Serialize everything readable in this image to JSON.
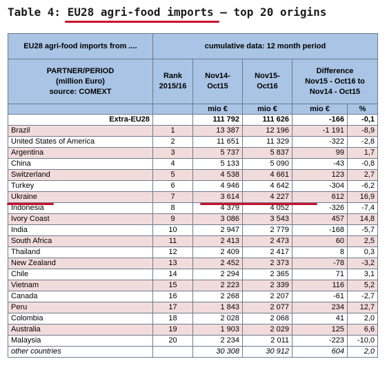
{
  "title": {
    "prefix": "Table 4: ",
    "highlight": "EU28 agri-food imports",
    "suffix": " – top 20 origins"
  },
  "header": {
    "top_left": "EU28 agri-food imports from ....",
    "top_right": "cumulative data: 12 month period",
    "partner_lines": [
      "PARTNER/PERIOD",
      "(million Euro)",
      "source: COMEXT"
    ],
    "rank_lines": [
      "Rank",
      "2015/16"
    ],
    "period1_lines": [
      "Nov14-",
      "Oct15"
    ],
    "period2_lines": [
      "Nov15-",
      "Oct16"
    ],
    "diff_lines": [
      "Difference",
      "Nov15 - Oct16 to",
      "Nov14 - Oct15"
    ],
    "units": [
      "mio €",
      "mio €",
      "mio €",
      "%"
    ]
  },
  "extra_eu": {
    "name": "Extra-EU28",
    "v1": "111 792",
    "v2": "111 626",
    "diff": "-166",
    "pct": "-0,1"
  },
  "rows": [
    {
      "name": "Brazil",
      "rank": "1",
      "v1": "13 387",
      "v2": "12 196",
      "diff": "-1 191",
      "pct": "-8,9"
    },
    {
      "name": "United States of America",
      "rank": "2",
      "v1": "11 651",
      "v2": "11 329",
      "diff": "-322",
      "pct": "-2,8"
    },
    {
      "name": "Argentina",
      "rank": "3",
      "v1": "5 737",
      "v2": "5 837",
      "diff": "99",
      "pct": "1,7"
    },
    {
      "name": "China",
      "rank": "4",
      "v1": "5 133",
      "v2": "5 090",
      "diff": "-43",
      "pct": "-0,8"
    },
    {
      "name": "Switzerland",
      "rank": "5",
      "v1": "4 538",
      "v2": "4 661",
      "diff": "123",
      "pct": "2,7"
    },
    {
      "name": "Turkey",
      "rank": "6",
      "v1": "4 946",
      "v2": "4 642",
      "diff": "-304",
      "pct": "-6,2"
    },
    {
      "name": "Ukraine",
      "rank": "7",
      "v1": "3 614",
      "v2": "4 227",
      "diff": "612",
      "pct": "16,9"
    },
    {
      "name": "Indonesia",
      "rank": "8",
      "v1": "4 379",
      "v2": "4 052",
      "diff": "-326",
      "pct": "-7,4"
    },
    {
      "name": "Ivory Coast",
      "rank": "9",
      "v1": "3 086",
      "v2": "3 543",
      "diff": "457",
      "pct": "14,8"
    },
    {
      "name": "India",
      "rank": "10",
      "v1": "2 947",
      "v2": "2 779",
      "diff": "-168",
      "pct": "-5,7"
    },
    {
      "name": "South Africa",
      "rank": "11",
      "v1": "2 413",
      "v2": "2 473",
      "diff": "60",
      "pct": "2,5"
    },
    {
      "name": "Thailand",
      "rank": "12",
      "v1": "2 409",
      "v2": "2 417",
      "diff": "8",
      "pct": "0,3"
    },
    {
      "name": "New Zealand",
      "rank": "13",
      "v1": "2 452",
      "v2": "2 373",
      "diff": "-78",
      "pct": "-3,2"
    },
    {
      "name": "Chile",
      "rank": "14",
      "v1": "2 294",
      "v2": "2 365",
      "diff": "71",
      "pct": "3,1"
    },
    {
      "name": "Vietnam",
      "rank": "15",
      "v1": "2 223",
      "v2": "2 339",
      "diff": "116",
      "pct": "5,2"
    },
    {
      "name": "Canada",
      "rank": "16",
      "v1": "2 268",
      "v2": "2 207",
      "diff": "-61",
      "pct": "-2,7"
    },
    {
      "name": "Peru",
      "rank": "17",
      "v1": "1 843",
      "v2": "2 077",
      "diff": "234",
      "pct": "12,7"
    },
    {
      "name": "Colombia",
      "rank": "18",
      "v1": "2 028",
      "v2": "2 068",
      "diff": "41",
      "pct": "2,0"
    },
    {
      "name": "Australia",
      "rank": "19",
      "v1": "1 903",
      "v2": "2 029",
      "diff": "125",
      "pct": "6,6"
    },
    {
      "name": "Malaysia",
      "rank": "20",
      "v1": "2 234",
      "v2": "2 011",
      "diff": "-223",
      "pct": "-10,0"
    }
  ],
  "other": {
    "name": "other countries",
    "v1": "30 308",
    "v2": "30 912",
    "diff": "604",
    "pct": "2,0"
  },
  "colors": {
    "header_bg": "#a9c4e4",
    "pink_row": "#f2dcdb",
    "highlight_red": "#c8102e"
  }
}
